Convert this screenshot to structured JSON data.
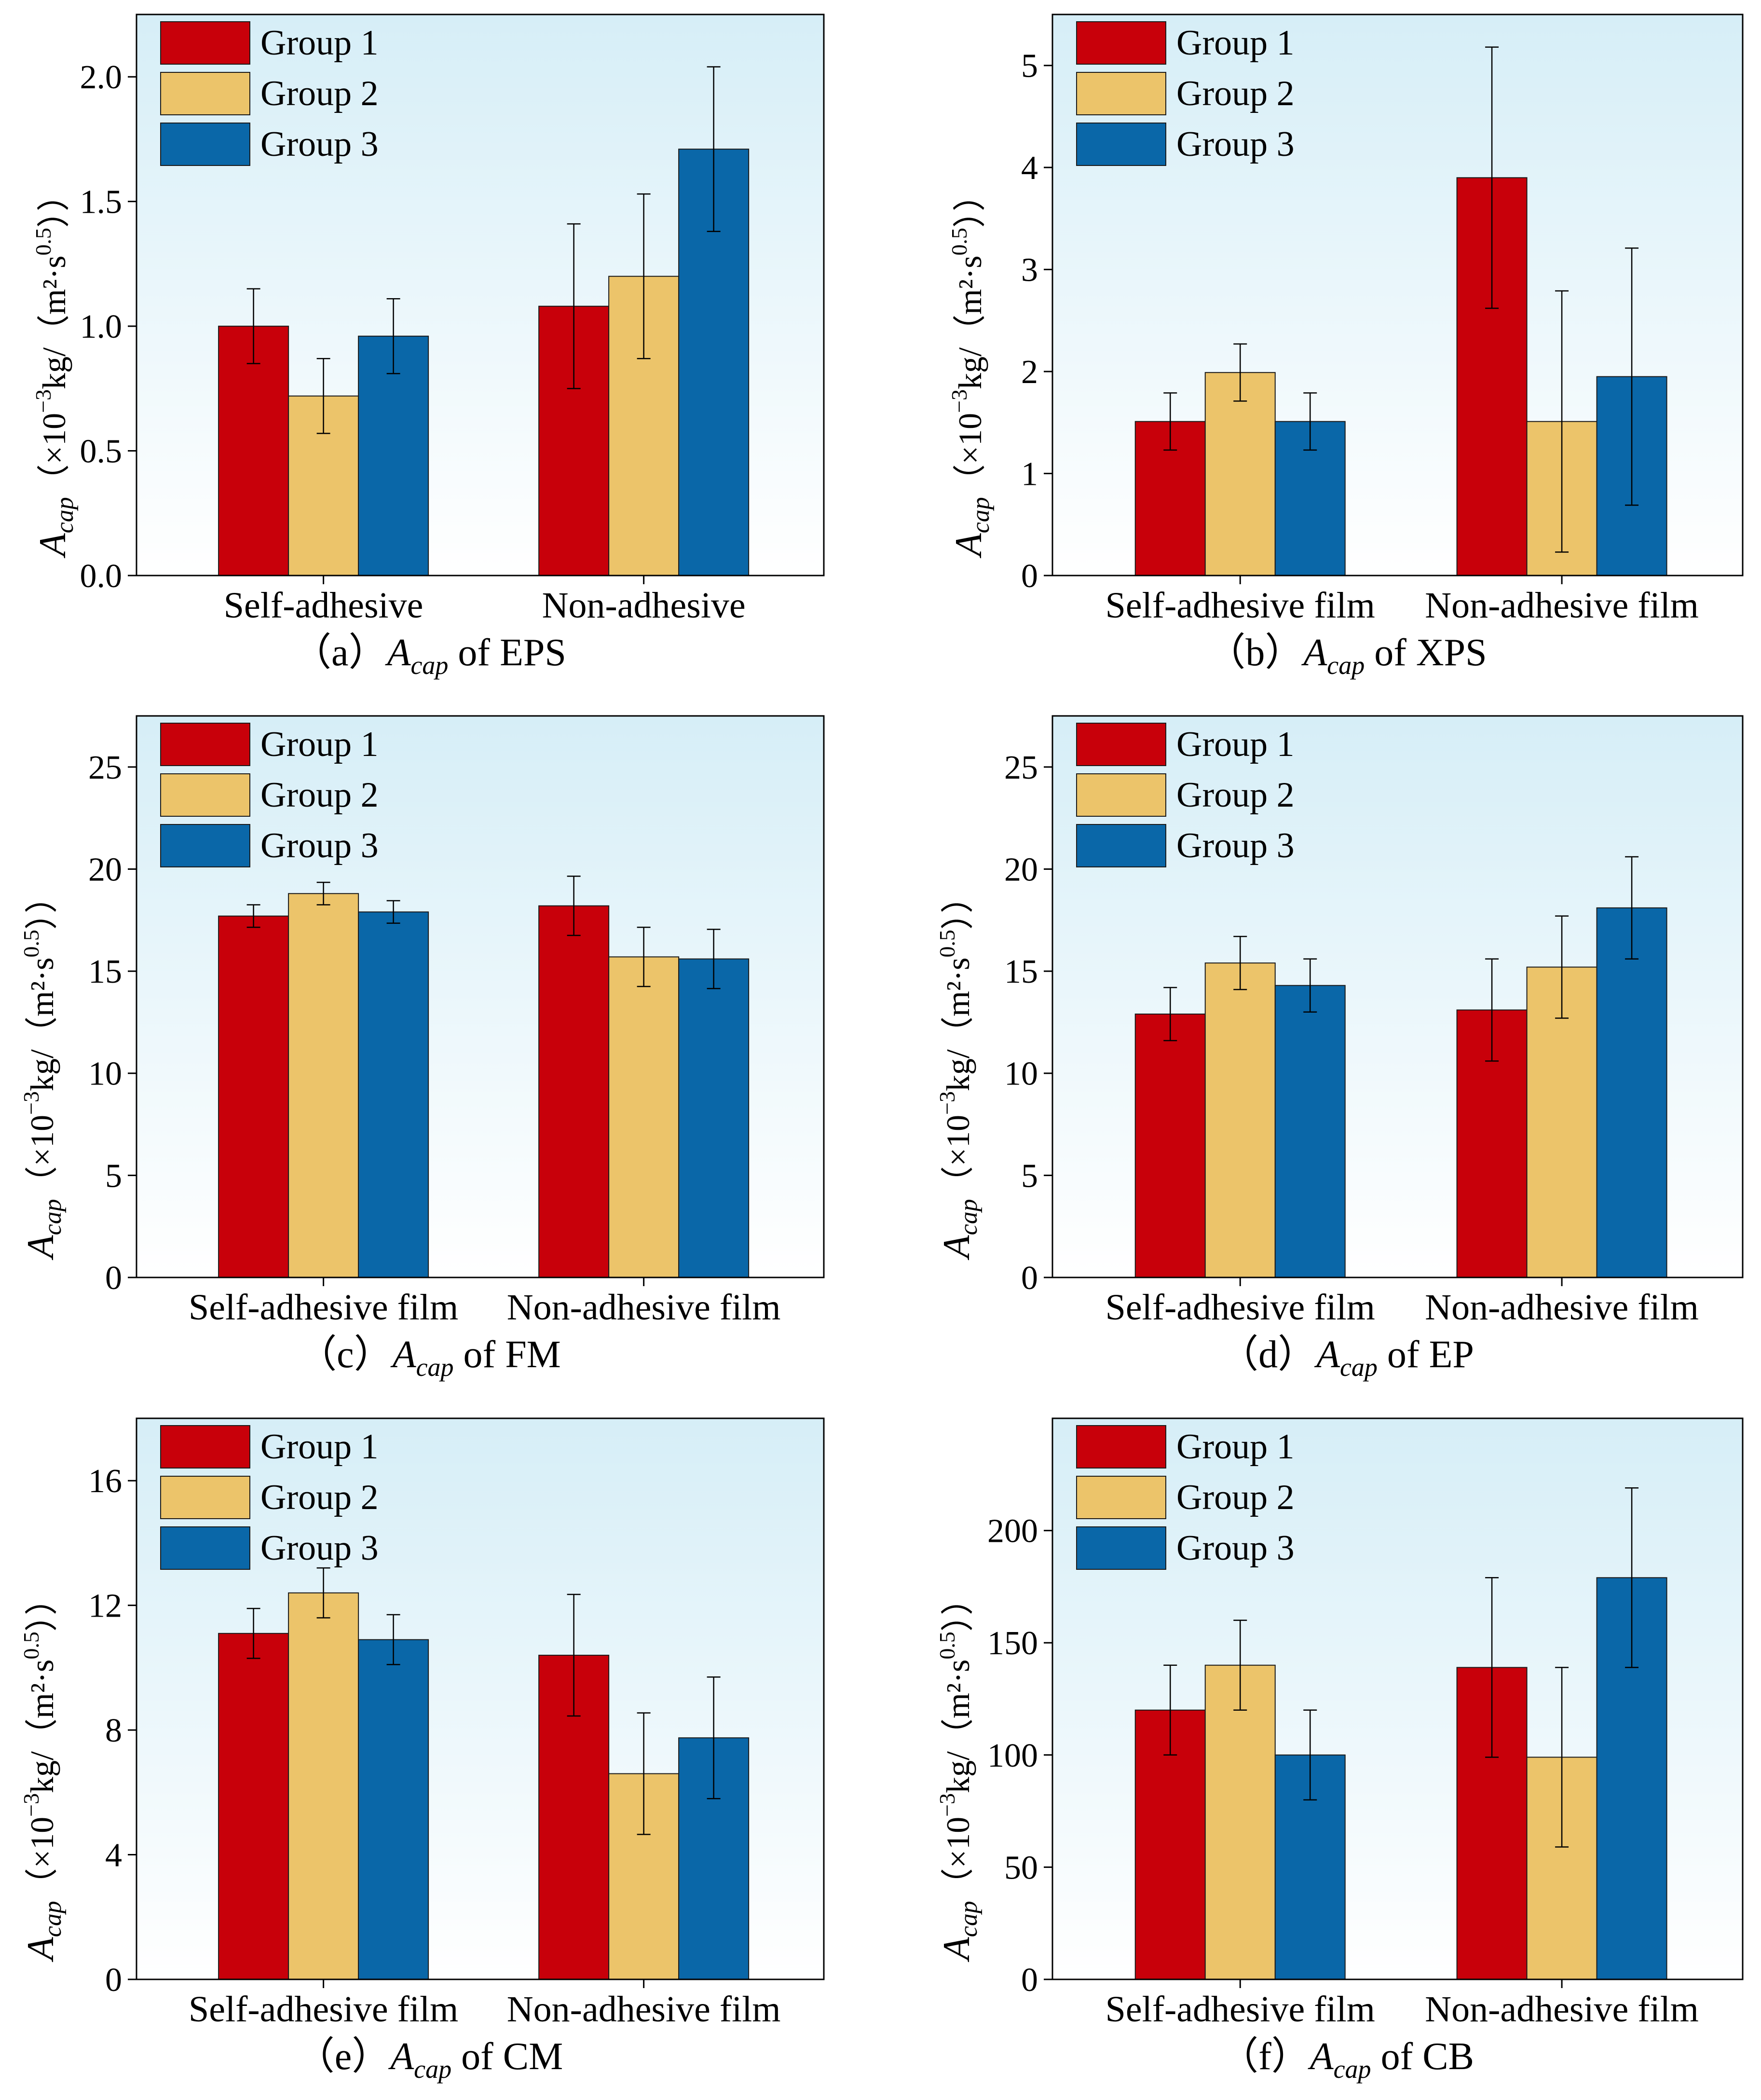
{
  "figure": {
    "colors": {
      "group1": "#C8000A",
      "group2": "#ECC46A",
      "group3": "#0A67A8",
      "bg_top": "#D6EEF7",
      "bg_bottom": "#FFFFFF"
    },
    "legend": [
      "Group 1",
      "Group 2",
      "Group 3"
    ],
    "ylabel": {
      "main": "A",
      "sub": "cap",
      "unit_pre": "（×10",
      "unit_exp": "−3",
      "unit_mid": "kg/（m²·s",
      "unit_exp2": "0.5",
      "unit_post": "））"
    }
  },
  "chart_data": [
    {
      "type": "bar",
      "caption": {
        "prefix": "（a）",
        "var": "A",
        "sub": "cap",
        "suffix": " of EPS"
      },
      "categories": [
        "Self-adhesive",
        "Non-adhesive"
      ],
      "series": [
        {
          "name": "Group 1",
          "values": [
            1.0,
            1.08
          ],
          "errors": [
            0.15,
            0.33
          ]
        },
        {
          "name": "Group 2",
          "values": [
            0.72,
            1.2
          ],
          "errors": [
            0.15,
            0.33
          ]
        },
        {
          "name": "Group 3",
          "values": [
            0.96,
            1.71
          ],
          "errors": [
            0.15,
            0.33
          ]
        }
      ],
      "ylim": [
        0,
        2.25
      ],
      "yticks": [
        "0.0",
        "0.5",
        "1.0",
        "1.5",
        "2.0"
      ],
      "ytick_values": [
        0,
        0.5,
        1.0,
        1.5,
        2.0
      ]
    },
    {
      "type": "bar",
      "caption": {
        "prefix": "（b）",
        "var": "A",
        "sub": "cap",
        "suffix": " of XPS"
      },
      "categories": [
        "Self-adhesive film",
        "Non-adhesive film"
      ],
      "series": [
        {
          "name": "Group 1",
          "values": [
            1.51,
            3.9
          ],
          "errors": [
            0.28,
            1.28
          ]
        },
        {
          "name": "Group 2",
          "values": [
            1.99,
            1.51
          ],
          "errors": [
            0.28,
            1.28
          ]
        },
        {
          "name": "Group 3",
          "values": [
            1.51,
            1.95
          ],
          "errors": [
            0.28,
            1.26
          ]
        }
      ],
      "ylim": [
        0,
        5.5
      ],
      "yticks": [
        "0",
        "1",
        "2",
        "3",
        "4",
        "5"
      ],
      "ytick_values": [
        0,
        1,
        2,
        3,
        4,
        5
      ]
    },
    {
      "type": "bar",
      "caption": {
        "prefix": "（c）",
        "var": "A",
        "sub": "cap",
        "suffix": " of FM"
      },
      "categories": [
        "Self-adhesive film",
        "Non-adhesive film"
      ],
      "series": [
        {
          "name": "Group 1",
          "values": [
            17.7,
            18.2
          ],
          "errors": [
            0.55,
            1.45
          ]
        },
        {
          "name": "Group 2",
          "values": [
            18.8,
            15.7
          ],
          "errors": [
            0.55,
            1.45
          ]
        },
        {
          "name": "Group 3",
          "values": [
            17.9,
            15.6
          ],
          "errors": [
            0.55,
            1.45
          ]
        }
      ],
      "ylim": [
        0,
        27.5
      ],
      "yticks": [
        "0",
        "5",
        "10",
        "15",
        "20",
        "25"
      ],
      "ytick_values": [
        0,
        5,
        10,
        15,
        20,
        25
      ]
    },
    {
      "type": "bar",
      "caption": {
        "prefix": "（d）",
        "var": "A",
        "sub": "cap",
        "suffix": " of EP"
      },
      "categories": [
        "Self-adhesive film",
        "Non-adhesive film"
      ],
      "series": [
        {
          "name": "Group 1",
          "values": [
            12.9,
            13.1
          ],
          "errors": [
            1.3,
            2.5
          ]
        },
        {
          "name": "Group 2",
          "values": [
            15.4,
            15.2
          ],
          "errors": [
            1.3,
            2.5
          ]
        },
        {
          "name": "Group 3",
          "values": [
            14.3,
            18.1
          ],
          "errors": [
            1.3,
            2.5
          ]
        }
      ],
      "ylim": [
        0,
        27.5
      ],
      "yticks": [
        "0",
        "5",
        "10",
        "15",
        "20",
        "25"
      ],
      "ytick_values": [
        0,
        5,
        10,
        15,
        20,
        25
      ]
    },
    {
      "type": "bar",
      "caption": {
        "prefix": "（e）",
        "var": "A",
        "sub": "cap",
        "suffix": " of CM"
      },
      "categories": [
        "Self-adhesive film",
        "Non-adhesive film"
      ],
      "series": [
        {
          "name": "Group 1",
          "values": [
            11.1,
            10.4
          ],
          "errors": [
            0.8,
            1.95
          ]
        },
        {
          "name": "Group 2",
          "values": [
            12.4,
            6.6
          ],
          "errors": [
            0.8,
            1.95
          ]
        },
        {
          "name": "Group 3",
          "values": [
            10.9,
            7.75
          ],
          "errors": [
            0.8,
            1.95
          ]
        }
      ],
      "ylim": [
        0,
        18
      ],
      "yticks": [
        "0",
        "4",
        "8",
        "12",
        "16"
      ],
      "ytick_values": [
        0,
        4,
        8,
        12,
        16
      ]
    },
    {
      "type": "bar",
      "caption": {
        "prefix": "（f）",
        "var": "A",
        "sub": "cap",
        "suffix": " of CB"
      },
      "categories": [
        "Self-adhesive film",
        "Non-adhesive film"
      ],
      "series": [
        {
          "name": "Group 1",
          "values": [
            120,
            139
          ],
          "errors": [
            20,
            40
          ]
        },
        {
          "name": "Group 2",
          "values": [
            140,
            99
          ],
          "errors": [
            20,
            40
          ]
        },
        {
          "name": "Group 3",
          "values": [
            100,
            179
          ],
          "errors": [
            20,
            40
          ]
        }
      ],
      "ylim": [
        0,
        250
      ],
      "yticks": [
        "0",
        "50",
        "100",
        "150",
        "200"
      ],
      "ytick_values": [
        0,
        50,
        100,
        150,
        200
      ]
    }
  ]
}
